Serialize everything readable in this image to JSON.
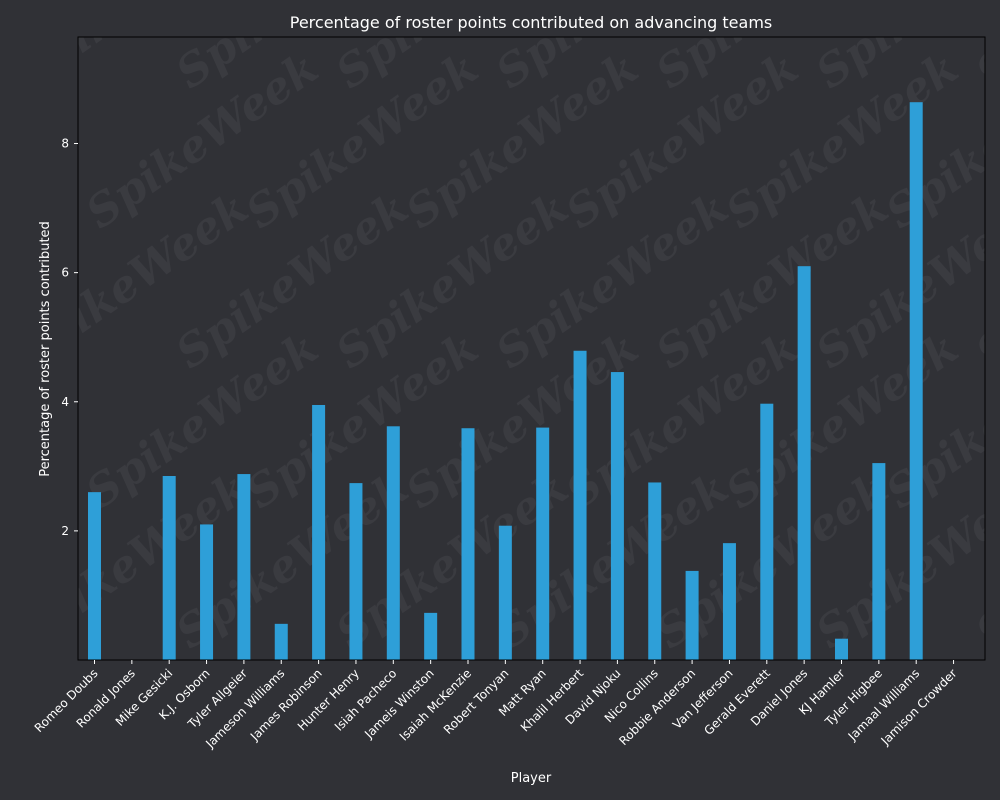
{
  "chart_data": {
    "type": "bar",
    "title": "Percentage of roster points contributed on advancing teams",
    "xlabel": "Player",
    "ylabel": "Percentage of roster points contributed",
    "ylim": [
      0,
      9.65
    ],
    "yticks": [
      2,
      4,
      6,
      8
    ],
    "grid": false,
    "bar_color": "#2e9fd8",
    "background_color": "#303136",
    "text_color": "#ffffff",
    "watermark": "SpikeWeek",
    "categories": [
      "Romeo Doubs",
      "Ronald Jones",
      "Mike Gesicki",
      "K.J. Osborn",
      "Tyler Allgeier",
      "Jameson Williams",
      "James Robinson",
      "Hunter Henry",
      "Isiah Pacheco",
      "Jameis Winston",
      "Isaiah McKenzie",
      "Robert Tonyan",
      "Matt Ryan",
      "Khalil Herbert",
      "David Njoku",
      "Nico Collins",
      "Robbie Anderson",
      "Van Jefferson",
      "Gerald Everett",
      "Daniel Jones",
      "KJ Hamler",
      "Tyler Higbee",
      "Jamaal Williams",
      "Jamison Crowder"
    ],
    "values": [
      2.6,
      0,
      2.85,
      2.1,
      2.88,
      0.56,
      3.95,
      2.74,
      3.62,
      0.73,
      3.59,
      2.08,
      3.6,
      4.79,
      4.46,
      2.75,
      1.38,
      1.81,
      3.97,
      6.1,
      0.33,
      3.05,
      8.64,
      0
    ]
  }
}
